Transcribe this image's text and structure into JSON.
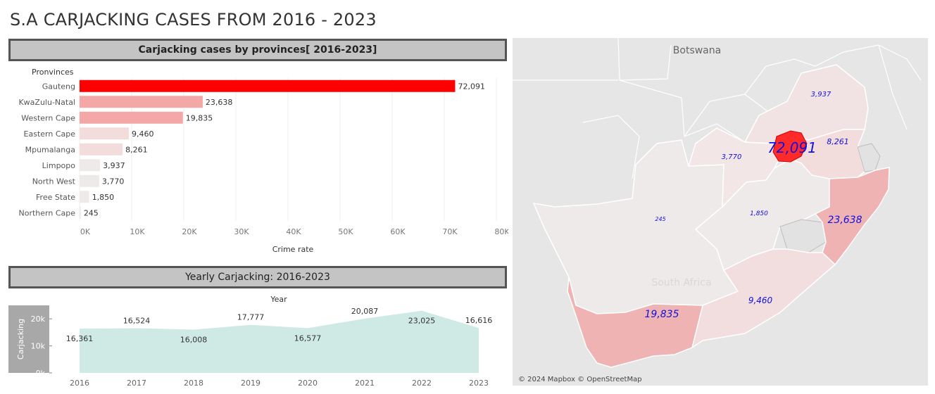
{
  "page": {
    "title": "S.A CARJACKING CASES FROM 2016 - 2023"
  },
  "bar_panel": {
    "header": "Carjacking cases by provinces[ 2016-2023]",
    "row_header": "Pronvinces",
    "xlabel": "Crime rate"
  },
  "year_panel": {
    "header": "Yearly Carjacking: 2016-2023",
    "top_label": "Year",
    "ylabel": "Carjacking"
  },
  "map": {
    "country_label": "Botswana",
    "south_africa_label": "South Africa",
    "attribution": "© 2024 Mapbox © OpenStreetMap"
  },
  "colors": {
    "max": "#ff0000",
    "high": "#f4a7a7",
    "mid": "#f1c4c4",
    "low": "#f3dcdc",
    "lowest": "#efeaea",
    "area_fill": "#cfe9e4",
    "map_label": "#1010e0"
  },
  "chart_data": [
    {
      "type": "bar",
      "orientation": "horizontal",
      "categories": [
        "Gauteng",
        "KwaZulu-Natal",
        "Western Cape",
        "Eastern Cape",
        "Mpumalanga",
        "Limpopo",
        "North West",
        "Free State",
        "Northern Cape"
      ],
      "values": [
        72091,
        23638,
        19835,
        9460,
        8261,
        3937,
        3770,
        1850,
        245
      ],
      "value_labels": [
        "72,091",
        "23,638",
        "19,835",
        "9,460",
        "8,261",
        "3,937",
        "3,770",
        "1,850",
        "245"
      ],
      "xlim": [
        0,
        80000
      ],
      "xticks": [
        0,
        10000,
        20000,
        30000,
        40000,
        50000,
        60000,
        70000,
        80000
      ],
      "xtick_labels": [
        "0K",
        "10K",
        "20K",
        "30K",
        "40K",
        "50K",
        "60K",
        "70K",
        "80K"
      ],
      "title": "Carjacking cases by provinces[ 2016-2023]",
      "xlabel": "Crime rate",
      "ylabel": "Pronvinces",
      "grid": true
    },
    {
      "type": "area",
      "x": [
        "2016",
        "2017",
        "2018",
        "2019",
        "2020",
        "2021",
        "2022",
        "2023"
      ],
      "values": [
        16361,
        16524,
        16008,
        17777,
        16577,
        20087,
        23025,
        16616
      ],
      "value_labels": [
        "16,361",
        "16,524",
        "16,008",
        "17,777",
        "16,577",
        "20,087",
        "23,025",
        "16,616"
      ],
      "ylim": [
        0,
        25000
      ],
      "yticks": [
        0,
        10000,
        20000
      ],
      "ytick_labels": [
        "0k",
        "10k",
        "20k"
      ],
      "title": "Yearly Carjacking: 2016-2023",
      "xlabel": "Year",
      "ylabel": "Carjacking"
    },
    {
      "type": "map",
      "regions": [
        {
          "name": "Gauteng",
          "value": 72091,
          "label": "72,091"
        },
        {
          "name": "KwaZulu-Natal",
          "value": 23638,
          "label": "23,638"
        },
        {
          "name": "Western Cape",
          "value": 19835,
          "label": "19,835"
        },
        {
          "name": "Eastern Cape",
          "value": 9460,
          "label": "9,460"
        },
        {
          "name": "Mpumalanga",
          "value": 8261,
          "label": "8,261"
        },
        {
          "name": "Limpopo",
          "value": 3937,
          "label": "3,937"
        },
        {
          "name": "North West",
          "value": 3770,
          "label": "3,770"
        },
        {
          "name": "Free State",
          "value": 1850,
          "label": "1,850"
        },
        {
          "name": "Northern Cape",
          "value": 245,
          "label": "245"
        }
      ]
    }
  ]
}
